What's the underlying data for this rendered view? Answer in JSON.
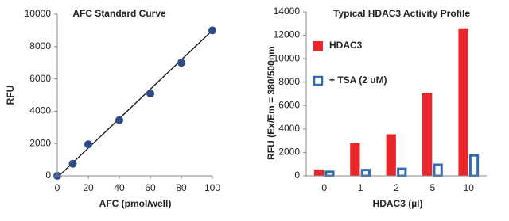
{
  "chart_data": [
    {
      "type": "scatter",
      "title": "AFC Standard Curve",
      "x_label": "AFC (pmol/well)",
      "y_label": "RFU",
      "x": [
        0,
        10,
        20,
        40,
        60,
        80,
        100
      ],
      "values": [
        0,
        750,
        1950,
        3450,
        5100,
        7000,
        9000
      ],
      "color": "#2b4a86",
      "trendline": {
        "x": [
          0,
          100
        ],
        "values": [
          -100,
          9000
        ],
        "color": "#111111"
      },
      "xlim": [
        0,
        100
      ],
      "xticks": [
        0,
        20,
        40,
        60,
        80,
        100
      ],
      "ylim": [
        0,
        10000
      ],
      "yticks": [
        0,
        2000,
        4000,
        6000,
        8000,
        10000
      ]
    },
    {
      "type": "bar",
      "title": "Typical HDAC3 Activity Profile",
      "x_label": "HDAC3 (µl)",
      "y_label": "RFU (Ex/Em = 380/500nm",
      "categories": [
        "0",
        "1",
        "2",
        "5",
        "10"
      ],
      "series": [
        {
          "name": "HDAC3",
          "color": "#e8262b",
          "filled": true,
          "values": [
            550,
            2800,
            3550,
            7100,
            12600
          ]
        },
        {
          "name": "+ TSA (2 uM)",
          "color": "#2f6db5",
          "filled": false,
          "values": [
            450,
            600,
            700,
            1050,
            1850
          ]
        }
      ],
      "ylim": [
        0,
        14000
      ],
      "yticks": [
        0,
        2000,
        4000,
        6000,
        8000,
        10000,
        12000,
        14000
      ]
    }
  ]
}
